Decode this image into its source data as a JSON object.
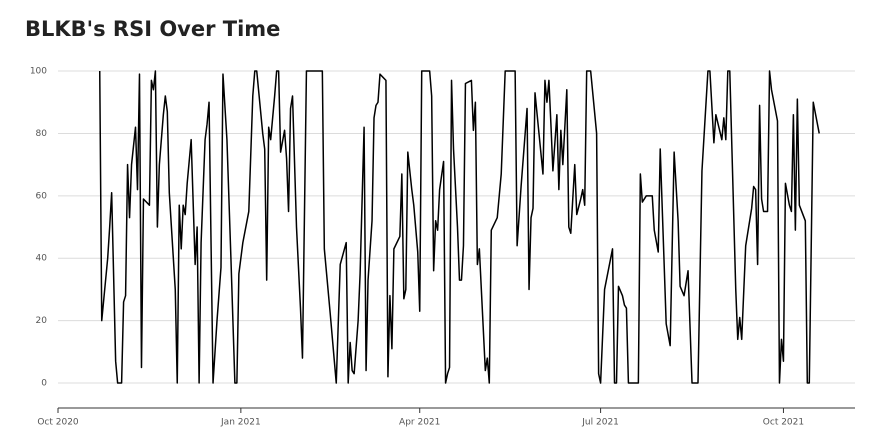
{
  "chart_data": {
    "type": "line",
    "title": "BLKB's RSI Over Time",
    "color": "#000000",
    "grid": true,
    "xlim": [
      "2020-10-01",
      "2021-11-06"
    ],
    "xticks": [
      {
        "value": "2020-10-01",
        "label": "Oct 2020"
      },
      {
        "value": "2021-01-01",
        "label": "Jan 2021"
      },
      {
        "value": "2021-04-01",
        "label": "Apr 2021"
      },
      {
        "value": "2021-07-01",
        "label": "Jul 2021"
      },
      {
        "value": "2021-10-01",
        "label": "Oct 2021"
      }
    ],
    "ylim": [
      -8,
      102
    ],
    "yticks": [
      0,
      20,
      40,
      60,
      80,
      100
    ],
    "x": [
      "2020-10-22",
      "2020-10-23",
      "2020-10-26",
      "2020-10-27",
      "2020-10-28",
      "2020-10-30",
      "2020-10-31",
      "2020-11-02",
      "2020-11-03",
      "2020-11-04",
      "2020-11-05",
      "2020-11-06",
      "2020-11-07",
      "2020-11-09",
      "2020-11-10",
      "2020-11-11",
      "2020-11-12",
      "2020-11-13",
      "2020-11-16",
      "2020-11-17",
      "2020-11-18",
      "2020-11-19",
      "2020-11-20",
      "2020-11-21",
      "2020-11-23",
      "2020-11-24",
      "2020-11-25",
      "2020-11-26",
      "2020-11-29",
      "2020-11-30",
      "2020-12-01",
      "2020-12-02",
      "2020-12-03",
      "2020-12-04",
      "2020-12-05",
      "2020-12-07",
      "2020-12-09",
      "2020-12-10",
      "2020-12-11",
      "2020-12-12",
      "2020-12-14",
      "2020-12-15",
      "2020-12-16",
      "2020-12-18",
      "2020-12-20",
      "2020-12-22",
      "2020-12-23",
      "2020-12-25",
      "2020-12-27",
      "2020-12-29",
      "2020-12-30",
      "2020-12-31",
      "2021-01-02",
      "2021-01-05",
      "2021-01-07",
      "2021-01-08",
      "2021-01-09",
      "2021-01-12",
      "2021-01-13",
      "2021-01-14",
      "2021-01-15",
      "2021-01-16",
      "2021-01-18",
      "2021-01-19",
      "2021-01-20",
      "2021-01-21",
      "2021-01-23",
      "2021-01-24",
      "2021-01-25",
      "2021-01-26",
      "2021-01-27",
      "2021-01-29",
      "2021-01-31",
      "2021-02-01",
      "2021-02-03",
      "2021-02-11",
      "2021-02-12",
      "2021-02-15",
      "2021-02-18",
      "2021-02-20",
      "2021-02-23",
      "2021-02-24",
      "2021-02-25",
      "2021-02-26",
      "2021-02-27",
      "2021-03-01",
      "2021-03-02",
      "2021-03-04",
      "2021-03-05",
      "2021-03-06",
      "2021-03-08",
      "2021-03-09",
      "2021-03-10",
      "2021-03-11",
      "2021-03-12",
      "2021-03-15",
      "2021-03-16",
      "2021-03-17",
      "2021-03-18",
      "2021-03-19",
      "2021-03-22",
      "2021-03-23",
      "2021-03-24",
      "2021-03-25",
      "2021-03-26",
      "2021-03-28",
      "2021-03-29",
      "2021-03-31",
      "2021-04-01",
      "2021-04-02",
      "2021-04-06",
      "2021-04-07",
      "2021-04-08",
      "2021-04-09",
      "2021-04-10",
      "2021-04-11",
      "2021-04-13",
      "2021-04-14",
      "2021-04-15",
      "2021-04-16",
      "2021-04-17",
      "2021-04-18",
      "2021-04-20",
      "2021-04-21",
      "2021-04-22",
      "2021-04-23",
      "2021-04-24",
      "2021-04-27",
      "2021-04-28",
      "2021-04-29",
      "2021-04-30",
      "2021-05-01",
      "2021-05-02",
      "2021-05-04",
      "2021-05-05",
      "2021-05-06",
      "2021-05-07",
      "2021-05-10",
      "2021-05-11",
      "2021-05-12",
      "2021-05-14",
      "2021-05-19",
      "2021-05-20",
      "2021-05-22",
      "2021-05-25",
      "2021-05-26",
      "2021-05-27",
      "2021-05-28",
      "2021-05-29",
      "2021-05-31",
      "2021-06-02",
      "2021-06-03",
      "2021-06-04",
      "2021-06-05",
      "2021-06-06",
      "2021-06-07",
      "2021-06-09",
      "2021-06-10",
      "2021-06-11",
      "2021-06-12",
      "2021-06-14",
      "2021-06-15",
      "2021-06-16",
      "2021-06-18",
      "2021-06-19",
      "2021-06-21",
      "2021-06-22",
      "2021-06-23",
      "2021-06-24",
      "2021-06-26",
      "2021-06-29",
      "2021-06-30",
      "2021-07-01",
      "2021-07-03",
      "2021-07-07",
      "2021-07-08",
      "2021-07-09",
      "2021-07-10",
      "2021-07-12",
      "2021-07-13",
      "2021-07-14",
      "2021-07-15",
      "2021-07-20",
      "2021-07-21",
      "2021-07-22",
      "2021-07-24",
      "2021-07-27",
      "2021-07-28",
      "2021-07-30",
      "2021-07-31",
      "2021-08-03",
      "2021-08-05",
      "2021-08-07",
      "2021-08-09",
      "2021-08-10",
      "2021-08-12",
      "2021-08-14",
      "2021-08-16",
      "2021-08-19",
      "2021-08-21",
      "2021-08-24",
      "2021-08-25",
      "2021-08-27",
      "2021-08-28",
      "2021-08-31",
      "2021-09-01",
      "2021-09-02",
      "2021-09-03",
      "2021-09-04",
      "2021-09-07",
      "2021-09-08",
      "2021-09-09",
      "2021-09-10",
      "2021-09-12",
      "2021-09-15",
      "2021-09-16",
      "2021-09-17",
      "2021-09-18",
      "2021-09-19",
      "2021-09-20",
      "2021-09-21",
      "2021-09-23",
      "2021-09-24",
      "2021-09-25",
      "2021-09-28",
      "2021-09-29",
      "2021-09-30",
      "2021-10-01",
      "2021-10-02",
      "2021-10-04",
      "2021-10-05",
      "2021-10-06",
      "2021-10-07",
      "2021-10-08",
      "2021-10-09",
      "2021-10-12",
      "2021-10-13",
      "2021-10-14",
      "2021-10-16",
      "2021-10-19"
    ],
    "values": [
      100,
      20,
      40,
      50,
      61,
      7,
      0,
      0,
      26,
      28,
      70,
      53,
      70,
      82,
      62,
      99,
      5,
      59,
      57,
      97,
      94,
      100,
      50,
      70,
      86,
      92,
      87,
      61,
      30,
      0,
      57,
      43,
      57,
      54,
      64,
      78,
      38,
      50,
      0,
      45,
      78,
      83,
      90,
      0,
      20,
      37,
      99,
      78,
      40,
      0,
      0,
      35,
      45,
      55,
      92,
      100,
      100,
      80,
      75,
      33,
      82,
      78,
      92,
      100,
      100,
      74,
      81,
      72,
      55,
      88,
      92,
      50,
      24,
      8,
      100,
      100,
      43,
      22,
      0,
      38,
      45,
      0,
      13,
      4,
      3,
      20,
      35,
      82,
      4,
      33,
      52,
      85,
      89,
      90,
      99,
      97,
      2,
      28,
      11,
      43,
      47,
      67,
      27,
      30,
      74,
      62,
      57,
      42,
      23,
      100,
      100,
      92,
      36,
      52,
      49,
      62,
      71,
      0,
      3,
      5,
      97,
      75,
      50,
      33,
      33,
      44,
      96,
      97,
      81,
      90,
      38,
      43,
      30,
      4,
      8,
      0,
      49,
      53,
      60,
      67,
      100,
      100,
      44,
      63,
      88,
      30,
      53,
      56,
      93,
      80,
      67,
      97,
      90,
      97,
      83,
      68,
      86,
      62,
      81,
      70,
      94,
      50,
      48,
      70,
      54,
      59,
      62,
      57,
      100,
      100,
      80,
      3,
      0,
      30,
      43,
      0,
      0,
      31,
      28,
      25,
      24,
      0,
      0,
      67,
      58,
      60,
      60,
      49,
      42,
      75,
      19,
      12,
      74,
      52,
      31,
      28,
      36,
      0,
      0,
      68,
      100,
      100,
      77,
      86,
      78,
      85,
      78,
      100,
      100,
      30,
      14,
      21,
      14,
      44,
      56,
      63,
      62,
      38,
      89,
      59,
      55,
      55,
      100,
      94,
      84,
      0,
      14,
      7,
      64,
      57,
      55,
      86,
      49,
      91,
      57,
      52,
      0,
      0,
      90,
      80
    ]
  }
}
